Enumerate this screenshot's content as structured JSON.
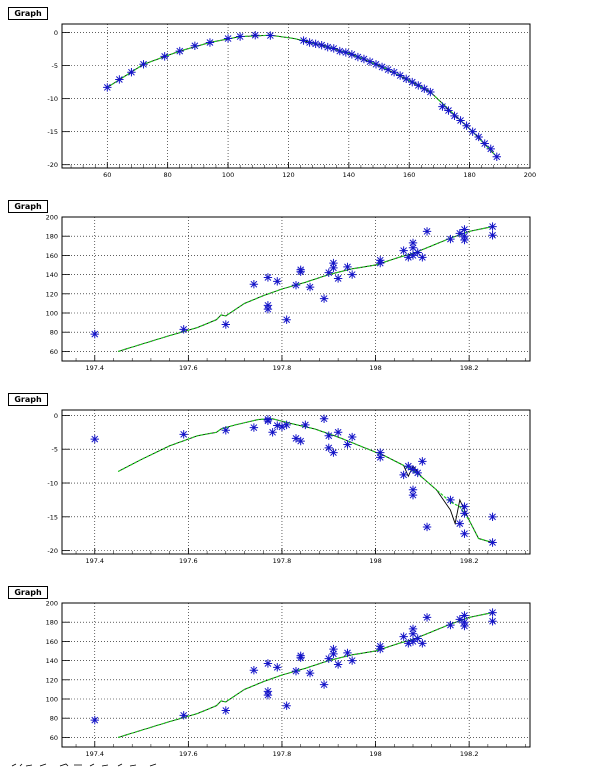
{
  "charts_meta": {
    "marker": "asterisk"
  },
  "colors": {
    "marker": "#1515c8",
    "line": "#000000",
    "smooth": "#22cc22",
    "grid": "#000000"
  },
  "chart_data": [
    {
      "type": "scatter",
      "title": "Graph",
      "xlabel": "",
      "ylabel": "",
      "xlim": [
        45,
        200
      ],
      "ylim": [
        -20.5,
        1.3
      ],
      "grid": true,
      "xticks": [
        60,
        80,
        100,
        120,
        140,
        160,
        180,
        200
      ],
      "xtick_labels": [
        "60",
        "80",
        "100",
        "120",
        "140",
        "160",
        "180",
        "200"
      ],
      "yticks": [
        0,
        -5,
        -10,
        -15,
        -20
      ],
      "ytick_labels": [
        "0",
        "-5",
        "-10",
        "-15",
        "-20"
      ],
      "points": [
        [
          60,
          -8.3
        ],
        [
          64,
          -7.1
        ],
        [
          68,
          -6.0
        ],
        [
          72,
          -4.8
        ],
        [
          79,
          -3.6
        ],
        [
          84,
          -2.8
        ],
        [
          89,
          -2.0
        ],
        [
          94,
          -1.5
        ],
        [
          100,
          -0.9
        ],
        [
          104,
          -0.6
        ],
        [
          109,
          -0.4
        ],
        [
          114,
          -0.45
        ],
        [
          125,
          -1.2
        ],
        [
          127,
          -1.5
        ],
        [
          129,
          -1.7
        ],
        [
          131,
          -1.9
        ],
        [
          133,
          -2.2
        ],
        [
          135,
          -2.4
        ],
        [
          137,
          -2.8
        ],
        [
          139,
          -3.0
        ],
        [
          141,
          -3.3
        ],
        [
          143,
          -3.7
        ],
        [
          145,
          -4.0
        ],
        [
          147,
          -4.4
        ],
        [
          149,
          -4.8
        ],
        [
          151,
          -5.2
        ],
        [
          153,
          -5.6
        ],
        [
          155,
          -6.0
        ],
        [
          157,
          -6.5
        ],
        [
          159,
          -7.0
        ],
        [
          161,
          -7.5
        ],
        [
          163,
          -8.0
        ],
        [
          165,
          -8.5
        ],
        [
          167,
          -9.0
        ],
        [
          171,
          -11.2
        ],
        [
          173,
          -11.8
        ],
        [
          175,
          -12.6
        ],
        [
          177,
          -13.3
        ],
        [
          179,
          -14.1
        ],
        [
          181,
          -15.0
        ],
        [
          183,
          -15.8
        ],
        [
          185,
          -16.8
        ],
        [
          187,
          -17.6
        ],
        [
          189,
          -18.8
        ]
      ],
      "line": [
        [
          60,
          -8.3
        ],
        [
          72,
          -4.8
        ],
        [
          84,
          -2.8
        ],
        [
          94,
          -1.5
        ],
        [
          104,
          -0.6
        ],
        [
          114,
          -0.4
        ],
        [
          122,
          -0.9
        ],
        [
          131,
          -1.9
        ],
        [
          141,
          -3.3
        ],
        [
          151,
          -5.2
        ],
        [
          161,
          -7.5
        ],
        [
          167,
          -9.0
        ],
        [
          173,
          -11.6
        ],
        [
          181,
          -15.0
        ],
        [
          189,
          -18.8
        ]
      ],
      "smooth": [
        [
          60,
          -8.3
        ],
        [
          72,
          -4.8
        ],
        [
          84,
          -2.8
        ],
        [
          94,
          -1.5
        ],
        [
          104,
          -0.6
        ],
        [
          114,
          -0.4
        ],
        [
          122,
          -0.9
        ],
        [
          131,
          -1.9
        ],
        [
          141,
          -3.3
        ],
        [
          151,
          -5.2
        ],
        [
          161,
          -7.5
        ],
        [
          167,
          -9.0
        ],
        [
          173,
          -11.6
        ],
        [
          181,
          -15.0
        ],
        [
          189,
          -18.8
        ]
      ]
    },
    {
      "type": "scatter",
      "title": "Graph",
      "xlabel": "",
      "ylabel": "",
      "xlim": [
        197.33,
        198.33
      ],
      "ylim": [
        50,
        200
      ],
      "grid": true,
      "xticks": [
        197.4,
        197.6,
        197.8,
        198.0,
        198.2
      ],
      "xtick_labels": [
        "197.4",
        "197.6",
        "197.8",
        "198",
        "198.2"
      ],
      "yticks": [
        60,
        80,
        100,
        120,
        140,
        160,
        180,
        200
      ],
      "ytick_labels": [
        "60",
        "80",
        "100",
        "120",
        "140",
        "160",
        "180",
        "200"
      ],
      "points": [
        [
          197.4,
          78
        ],
        [
          197.59,
          83
        ],
        [
          197.68,
          88
        ],
        [
          197.74,
          130
        ],
        [
          197.77,
          137
        ],
        [
          197.77,
          108
        ],
        [
          197.77,
          104
        ],
        [
          197.79,
          133
        ],
        [
          197.81,
          93
        ],
        [
          197.83,
          129
        ],
        [
          197.84,
          143
        ],
        [
          197.84,
          145
        ],
        [
          197.86,
          127
        ],
        [
          197.89,
          115
        ],
        [
          197.9,
          142
        ],
        [
          197.91,
          147
        ],
        [
          197.91,
          152
        ],
        [
          197.92,
          136
        ],
        [
          197.94,
          148
        ],
        [
          197.95,
          140
        ],
        [
          198.01,
          152
        ],
        [
          198.01,
          155
        ],
        [
          198.06,
          165
        ],
        [
          198.07,
          158
        ],
        [
          198.08,
          168
        ],
        [
          198.08,
          173
        ],
        [
          198.08,
          160
        ],
        [
          198.09,
          163
        ],
        [
          198.1,
          158
        ],
        [
          198.11,
          185
        ],
        [
          198.16,
          177
        ],
        [
          198.18,
          183
        ],
        [
          198.19,
          176
        ],
        [
          198.19,
          180
        ],
        [
          198.19,
          187
        ],
        [
          198.25,
          190
        ],
        [
          198.25,
          181
        ]
      ],
      "line": [
        [
          197.45,
          60
        ],
        [
          197.55,
          75
        ],
        [
          197.62,
          85
        ],
        [
          197.66,
          93
        ],
        [
          197.67,
          98
        ],
        [
          197.68,
          97
        ],
        [
          197.72,
          110
        ],
        [
          197.76,
          118
        ],
        [
          197.8,
          125
        ],
        [
          197.85,
          132
        ],
        [
          197.9,
          140
        ],
        [
          197.95,
          146
        ],
        [
          198.0,
          150
        ],
        [
          198.05,
          158
        ],
        [
          198.08,
          162
        ],
        [
          198.12,
          170
        ],
        [
          198.16,
          178
        ],
        [
          198.2,
          185
        ],
        [
          198.25,
          190
        ]
      ],
      "smooth": [
        [
          197.45,
          60
        ],
        [
          197.55,
          75
        ],
        [
          197.62,
          85
        ],
        [
          197.66,
          93
        ],
        [
          197.67,
          98
        ],
        [
          197.68,
          97
        ],
        [
          197.72,
          110
        ],
        [
          197.76,
          118
        ],
        [
          197.8,
          125
        ],
        [
          197.85,
          132
        ],
        [
          197.9,
          140
        ],
        [
          197.95,
          146
        ],
        [
          198.0,
          150
        ],
        [
          198.05,
          158
        ],
        [
          198.08,
          162
        ],
        [
          198.12,
          170
        ],
        [
          198.16,
          178
        ],
        [
          198.2,
          185
        ],
        [
          198.25,
          190
        ]
      ]
    },
    {
      "type": "scatter",
      "title": "Graph",
      "xlabel": "",
      "ylabel": "",
      "xlim": [
        197.33,
        198.33
      ],
      "ylim": [
        -20.5,
        0.8
      ],
      "grid": true,
      "xticks": [
        197.4,
        197.6,
        197.8,
        198.0,
        198.2
      ],
      "xtick_labels": [
        "197.4",
        "197.6",
        "197.8",
        "198",
        "198.2"
      ],
      "yticks": [
        0,
        -5,
        -10,
        -15,
        -20
      ],
      "ytick_labels": [
        "0",
        "-5",
        "-10",
        "-15",
        "-20"
      ],
      "points": [
        [
          197.4,
          -3.5
        ],
        [
          197.59,
          -2.8
        ],
        [
          197.68,
          -2.2
        ],
        [
          197.74,
          -1.8
        ],
        [
          197.77,
          -0.6
        ],
        [
          197.77,
          -0.8
        ],
        [
          197.78,
          -2.5
        ],
        [
          197.79,
          -1.5
        ],
        [
          197.8,
          -1.7
        ],
        [
          197.81,
          -1.4
        ],
        [
          197.83,
          -3.4
        ],
        [
          197.84,
          -3.8
        ],
        [
          197.85,
          -1.4
        ],
        [
          197.89,
          -0.5
        ],
        [
          197.9,
          -3.0
        ],
        [
          197.9,
          -4.8
        ],
        [
          197.91,
          -5.5
        ],
        [
          197.92,
          -2.5
        ],
        [
          197.94,
          -4.3
        ],
        [
          197.95,
          -3.2
        ],
        [
          198.01,
          -5.5
        ],
        [
          198.01,
          -6.2
        ],
        [
          198.06,
          -8.8
        ],
        [
          198.07,
          -7.5
        ],
        [
          198.08,
          -8.0
        ],
        [
          198.08,
          -11.0
        ],
        [
          198.08,
          -11.8
        ],
        [
          198.09,
          -8.5
        ],
        [
          198.1,
          -6.8
        ],
        [
          198.11,
          -16.5
        ],
        [
          198.16,
          -12.5
        ],
        [
          198.18,
          -16.0
        ],
        [
          198.19,
          -13.5
        ],
        [
          198.19,
          -14.5
        ],
        [
          198.19,
          -17.5
        ],
        [
          198.25,
          -15.0
        ],
        [
          198.25,
          -18.8
        ]
      ],
      "line": [
        [
          197.45,
          -8.3
        ],
        [
          197.5,
          -6.5
        ],
        [
          197.56,
          -4.5
        ],
        [
          197.62,
          -3.0
        ],
        [
          197.66,
          -2.5
        ],
        [
          197.67,
          -2.0
        ],
        [
          197.7,
          -1.4
        ],
        [
          197.75,
          -0.6
        ],
        [
          197.78,
          -0.5
        ],
        [
          197.82,
          -1.2
        ],
        [
          197.87,
          -2.0
        ],
        [
          197.92,
          -3.2
        ],
        [
          197.97,
          -4.6
        ],
        [
          198.02,
          -6.0
        ],
        [
          198.06,
          -7.4
        ],
        [
          198.07,
          -9.0
        ],
        [
          198.08,
          -7.5
        ],
        [
          198.1,
          -9.2
        ],
        [
          198.13,
          -11.0
        ],
        [
          198.16,
          -14.0
        ],
        [
          198.17,
          -16.0
        ],
        [
          198.18,
          -12.5
        ],
        [
          198.2,
          -15.5
        ],
        [
          198.22,
          -18.2
        ],
        [
          198.25,
          -18.8
        ]
      ],
      "smooth": [
        [
          197.45,
          -8.3
        ],
        [
          197.5,
          -6.5
        ],
        [
          197.56,
          -4.5
        ],
        [
          197.62,
          -3.0
        ],
        [
          197.66,
          -2.5
        ],
        [
          197.67,
          -2.0
        ],
        [
          197.7,
          -1.4
        ],
        [
          197.75,
          -0.6
        ],
        [
          197.78,
          -0.5
        ],
        [
          197.82,
          -1.2
        ],
        [
          197.87,
          -2.0
        ],
        [
          197.92,
          -3.2
        ],
        [
          197.97,
          -4.6
        ],
        [
          198.02,
          -6.0
        ],
        [
          198.06,
          -7.4
        ],
        [
          198.08,
          -8.2
        ],
        [
          198.1,
          -9.2
        ],
        [
          198.13,
          -11.0
        ],
        [
          198.16,
          -12.8
        ],
        [
          198.18,
          -13.5
        ],
        [
          198.2,
          -15.5
        ],
        [
          198.22,
          -18.2
        ],
        [
          198.25,
          -18.8
        ]
      ]
    },
    {
      "type": "scatter",
      "title": "Graph",
      "xlabel": "",
      "ylabel": "",
      "xlim": [
        197.33,
        198.33
      ],
      "ylim": [
        50,
        200
      ],
      "grid": true,
      "xticks": [
        197.4,
        197.6,
        197.8,
        198.0,
        198.2
      ],
      "xtick_labels": [
        "197.4",
        "197.6",
        "197.8",
        "198",
        "198.2"
      ],
      "yticks": [
        60,
        80,
        100,
        120,
        140,
        160,
        180,
        200
      ],
      "ytick_labels": [
        "60",
        "80",
        "100",
        "120",
        "140",
        "160",
        "180",
        "200"
      ],
      "points": [
        [
          197.4,
          78
        ],
        [
          197.59,
          83
        ],
        [
          197.68,
          88
        ],
        [
          197.74,
          130
        ],
        [
          197.77,
          137
        ],
        [
          197.77,
          108
        ],
        [
          197.77,
          104
        ],
        [
          197.79,
          133
        ],
        [
          197.81,
          93
        ],
        [
          197.83,
          129
        ],
        [
          197.84,
          143
        ],
        [
          197.84,
          145
        ],
        [
          197.86,
          127
        ],
        [
          197.89,
          115
        ],
        [
          197.9,
          142
        ],
        [
          197.91,
          147
        ],
        [
          197.91,
          152
        ],
        [
          197.92,
          136
        ],
        [
          197.94,
          148
        ],
        [
          197.95,
          140
        ],
        [
          198.01,
          152
        ],
        [
          198.01,
          155
        ],
        [
          198.06,
          165
        ],
        [
          198.07,
          158
        ],
        [
          198.08,
          168
        ],
        [
          198.08,
          173
        ],
        [
          198.08,
          160
        ],
        [
          198.09,
          163
        ],
        [
          198.1,
          158
        ],
        [
          198.11,
          185
        ],
        [
          198.16,
          177
        ],
        [
          198.18,
          183
        ],
        [
          198.19,
          176
        ],
        [
          198.19,
          180
        ],
        [
          198.19,
          187
        ],
        [
          198.25,
          190
        ],
        [
          198.25,
          181
        ]
      ],
      "line": [
        [
          197.45,
          60
        ],
        [
          197.55,
          75
        ],
        [
          197.62,
          85
        ],
        [
          197.66,
          93
        ],
        [
          197.67,
          98
        ],
        [
          197.68,
          97
        ],
        [
          197.72,
          110
        ],
        [
          197.76,
          118
        ],
        [
          197.8,
          125
        ],
        [
          197.85,
          132
        ],
        [
          197.9,
          140
        ],
        [
          197.95,
          146
        ],
        [
          198.0,
          150
        ],
        [
          198.05,
          158
        ],
        [
          198.08,
          162
        ],
        [
          198.12,
          170
        ],
        [
          198.16,
          178
        ],
        [
          198.2,
          185
        ],
        [
          198.25,
          190
        ]
      ],
      "smooth": [
        [
          197.45,
          60
        ],
        [
          197.55,
          75
        ],
        [
          197.62,
          85
        ],
        [
          197.66,
          93
        ],
        [
          197.67,
          98
        ],
        [
          197.68,
          97
        ],
        [
          197.72,
          110
        ],
        [
          197.76,
          118
        ],
        [
          197.8,
          125
        ],
        [
          197.85,
          132
        ],
        [
          197.9,
          140
        ],
        [
          197.95,
          146
        ],
        [
          198.0,
          150
        ],
        [
          198.05,
          158
        ],
        [
          198.08,
          162
        ],
        [
          198.12,
          170
        ],
        [
          198.16,
          178
        ],
        [
          198.2,
          185
        ],
        [
          198.25,
          190
        ]
      ]
    }
  ]
}
